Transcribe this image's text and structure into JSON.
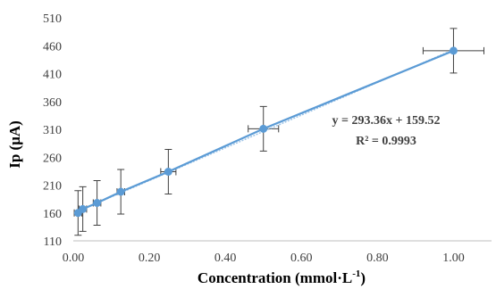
{
  "chart_data": {
    "type": "scatter",
    "xlabel": "Concentration (mmol·L",
    "xlabel_sup": "-1",
    "xlabel_close": ")",
    "ylabel": "Ip (μA)",
    "xlim": [
      0.0,
      1.1
    ],
    "ylim": [
      110,
      510
    ],
    "x_ticks": [
      "0.00",
      "0.20",
      "0.40",
      "0.60",
      "0.80",
      "1.00"
    ],
    "y_ticks": [
      "110",
      "160",
      "210",
      "260",
      "310",
      "360",
      "410",
      "460",
      "510"
    ],
    "grid": false,
    "series": [
      {
        "x": [
          0.0125,
          0.025,
          0.0625,
          0.125,
          0.25,
          0.5,
          1.0
        ],
        "y": [
          160,
          167,
          178,
          198,
          234,
          311,
          451
        ],
        "y_error": [
          40,
          40,
          40,
          40,
          40,
          40,
          40
        ],
        "x_error": [
          0.01,
          0.01,
          0.01,
          0.01,
          0.02,
          0.04,
          0.08
        ]
      }
    ],
    "trendline": {
      "slope": 293.36,
      "intercept": 159.52,
      "equation": "y = 293.36x + 159.52",
      "r_squared": "R² = 0.9993"
    },
    "colors": {
      "series": "#5b9bd5",
      "error_bar": "#404040",
      "axis": "#bfbfbf"
    }
  }
}
